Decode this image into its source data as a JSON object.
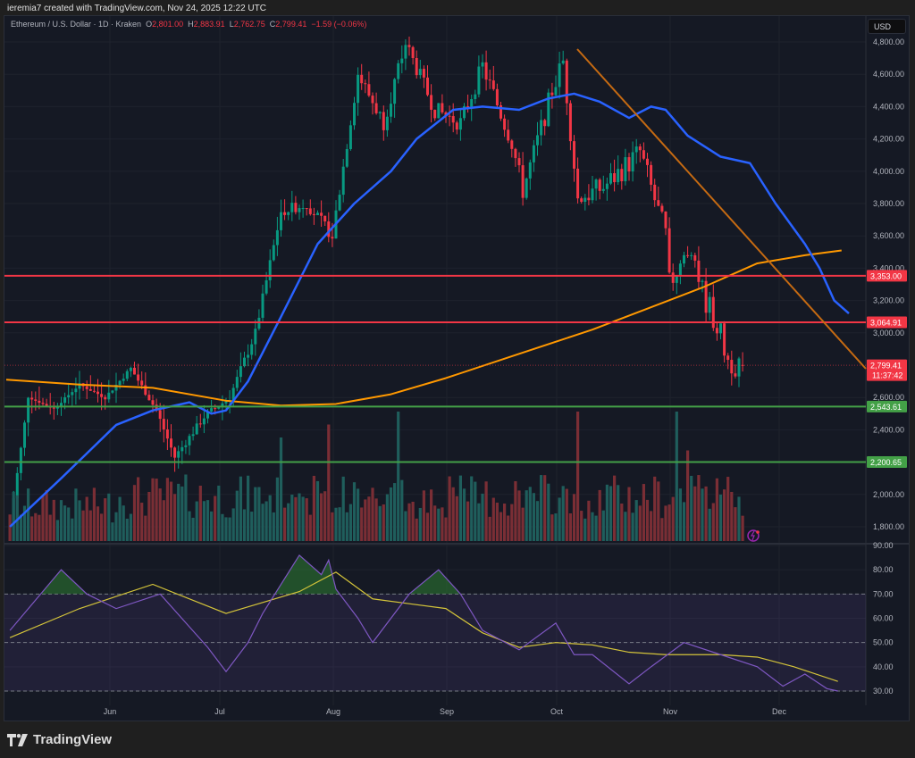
{
  "credit": "ieremia7 created with TradingView.com, Nov 24, 2025 12:22 UTC",
  "legend": {
    "symbol": "Ethereum / U.S. Dollar · 1D · Kraken",
    "open_label": "O",
    "open": "2,801.00",
    "high_label": "H",
    "high": "2,883.91",
    "low_label": "L",
    "low": "2,762.75",
    "close_label": "C",
    "close": "2,799.41",
    "change": "−1.59 (−0.06%)"
  },
  "currency_button": "USD",
  "brand": "TradingView",
  "colors": {
    "background": "#151924",
    "up": "#089981",
    "down": "#f23645",
    "vol_up": "#1f5e5c",
    "vol_down": "#7a2e35",
    "ema_fast": "#2962ff",
    "ma_slow": "#ff9800",
    "trendline": "#c56a12",
    "resistance": "#f23645",
    "support": "#43a047",
    "rsi": "#7e57c2",
    "rsi_ma": "#d4c43a"
  },
  "price_axis": {
    "labels": [
      "4,800.00",
      "4,600.00",
      "4,400.00",
      "4,200.00",
      "4,000.00",
      "3,800.00",
      "3,600.00",
      "3,400.00",
      "3,200.00",
      "3,000.00",
      "2,600.00",
      "2,400.00",
      "2,000.00",
      "1,800.00"
    ],
    "tags": [
      {
        "value": "3,353.00",
        "type": "resistance"
      },
      {
        "value": "3,064.91",
        "type": "resistance"
      },
      {
        "value": "2,799.41",
        "sub": "11:37:42",
        "type": "last"
      },
      {
        "value": "2,543.61",
        "type": "support"
      },
      {
        "value": "2,200.65",
        "type": "support"
      }
    ]
  },
  "rsi_axis": {
    "labels": [
      "90.00",
      "80.00",
      "70.00",
      "60.00",
      "50.00",
      "40.00",
      "30.00"
    ]
  },
  "time_axis": {
    "labels": [
      "Jun",
      "Jul",
      "Aug",
      "Sep",
      "Oct",
      "Nov",
      "Dec"
    ]
  },
  "chart_data": {
    "type": "candlestick",
    "title": "Ethereum / U.S. Dollar · 1D · Kraken",
    "ylabel": "USD",
    "ylim": [
      1700,
      4900
    ],
    "x_range": [
      "2025-05-07",
      "2025-12-20"
    ],
    "last_price": 2799.41,
    "ohlc_latest": {
      "open": 2801.0,
      "high": 2883.91,
      "low": 2762.75,
      "close": 2799.41,
      "change": -1.59,
      "change_pct": -0.06
    },
    "horizontal_levels": [
      {
        "price": 3353.0,
        "color": "red",
        "role": "resistance"
      },
      {
        "price": 3064.91,
        "color": "red",
        "role": "resistance"
      },
      {
        "price": 2543.61,
        "color": "green",
        "role": "support"
      },
      {
        "price": 2200.65,
        "color": "green",
        "role": "support"
      }
    ],
    "trendline": {
      "from": {
        "date": "2025-10-06",
        "price": 4755
      },
      "to": {
        "date": "2025-11-26",
        "price": 2800
      },
      "color": "orange",
      "extends_right": true
    },
    "closes_weekly_approx": [
      {
        "date": "2025-05-08",
        "close": 1820
      },
      {
        "date": "2025-05-13",
        "close": 2600
      },
      {
        "date": "2025-05-20",
        "close": 2530
      },
      {
        "date": "2025-05-27",
        "close": 2680
      },
      {
        "date": "2025-06-03",
        "close": 2600
      },
      {
        "date": "2025-06-10",
        "close": 2780
      },
      {
        "date": "2025-06-17",
        "close": 2520
      },
      {
        "date": "2025-06-22",
        "close": 2230
      },
      {
        "date": "2025-06-30",
        "close": 2480
      },
      {
        "date": "2025-07-07",
        "close": 2600
      },
      {
        "date": "2025-07-14",
        "close": 3000
      },
      {
        "date": "2025-07-21",
        "close": 3750
      },
      {
        "date": "2025-07-28",
        "close": 3800
      },
      {
        "date": "2025-08-04",
        "close": 3600
      },
      {
        "date": "2025-08-11",
        "close": 4600
      },
      {
        "date": "2025-08-18",
        "close": 4300
      },
      {
        "date": "2025-08-24",
        "close": 4790
      },
      {
        "date": "2025-09-01",
        "close": 4380
      },
      {
        "date": "2025-09-08",
        "close": 4300
      },
      {
        "date": "2025-09-14",
        "close": 4650
      },
      {
        "date": "2025-09-22",
        "close": 4180
      },
      {
        "date": "2025-09-25",
        "close": 3880
      },
      {
        "date": "2025-10-03",
        "close": 4500
      },
      {
        "date": "2025-10-06",
        "close": 4680
      },
      {
        "date": "2025-10-10",
        "close": 3830
      },
      {
        "date": "2025-10-17",
        "close": 3900
      },
      {
        "date": "2025-10-27",
        "close": 4120
      },
      {
        "date": "2025-11-03",
        "close": 3600
      },
      {
        "date": "2025-11-04",
        "close": 3300
      },
      {
        "date": "2025-11-10",
        "close": 3560
      },
      {
        "date": "2025-11-13",
        "close": 3250
      },
      {
        "date": "2025-11-17",
        "close": 3050
      },
      {
        "date": "2025-11-20",
        "close": 2830
      },
      {
        "date": "2025-11-24",
        "close": 2799.41
      }
    ],
    "series": [
      {
        "name": "EMA (fast, blue)",
        "points": [
          [
            1,
            1800
          ],
          [
            15,
            2100
          ],
          [
            30,
            2430
          ],
          [
            40,
            2520
          ],
          [
            50,
            2570
          ],
          [
            56,
            2500
          ],
          [
            60,
            2520
          ],
          [
            66,
            2700
          ],
          [
            75,
            3100
          ],
          [
            85,
            3550
          ],
          [
            95,
            3800
          ],
          [
            105,
            4000
          ],
          [
            112,
            4200
          ],
          [
            122,
            4380
          ],
          [
            130,
            4400
          ],
          [
            140,
            4380
          ],
          [
            148,
            4450
          ],
          [
            155,
            4480
          ],
          [
            162,
            4430
          ],
          [
            170,
            4330
          ],
          [
            176,
            4400
          ],
          [
            180,
            4380
          ],
          [
            186,
            4220
          ],
          [
            195,
            4090
          ],
          [
            203,
            4050
          ],
          [
            210,
            3800
          ],
          [
            218,
            3550
          ],
          [
            222,
            3400
          ],
          [
            226,
            3200
          ],
          [
            230,
            3120
          ]
        ]
      },
      {
        "name": "MA (slow, orange)",
        "points": [
          [
            0,
            2710
          ],
          [
            20,
            2680
          ],
          [
            40,
            2660
          ],
          [
            60,
            2580
          ],
          [
            75,
            2550
          ],
          [
            90,
            2560
          ],
          [
            105,
            2620
          ],
          [
            120,
            2720
          ],
          [
            140,
            2870
          ],
          [
            160,
            3020
          ],
          [
            175,
            3150
          ],
          [
            190,
            3280
          ],
          [
            205,
            3430
          ],
          [
            218,
            3480
          ],
          [
            228,
            3510
          ]
        ]
      }
    ],
    "volume_note": "Volume histogram at bottom of price pane; notable spikes around Aug 22 (green), Oct 10 (red), Nov 6 (green)",
    "rsi": {
      "ylim": [
        25,
        92
      ],
      "bands": [
        30,
        50,
        70
      ],
      "values_approx": [
        [
          1,
          55
        ],
        [
          15,
          80
        ],
        [
          22,
          70
        ],
        [
          30,
          64
        ],
        [
          42,
          70
        ],
        [
          55,
          48
        ],
        [
          60,
          38
        ],
        [
          66,
          50
        ],
        [
          70,
          62
        ],
        [
          80,
          86
        ],
        [
          86,
          78
        ],
        [
          88,
          84
        ],
        [
          90,
          72
        ],
        [
          96,
          60
        ],
        [
          100,
          50
        ],
        [
          110,
          70
        ],
        [
          118,
          80
        ],
        [
          124,
          70
        ],
        [
          130,
          55
        ],
        [
          140,
          47
        ],
        [
          150,
          58
        ],
        [
          155,
          45
        ],
        [
          160,
          45
        ],
        [
          170,
          33
        ],
        [
          176,
          40
        ],
        [
          185,
          50
        ],
        [
          195,
          45
        ],
        [
          205,
          40
        ],
        [
          212,
          32
        ],
        [
          218,
          37
        ],
        [
          224,
          31
        ],
        [
          227,
          30
        ]
      ],
      "ma_values_approx": [
        [
          1,
          52
        ],
        [
          20,
          64
        ],
        [
          40,
          74
        ],
        [
          60,
          62
        ],
        [
          80,
          71
        ],
        [
          90,
          79
        ],
        [
          100,
          68
        ],
        [
          110,
          66
        ],
        [
          120,
          64
        ],
        [
          130,
          54
        ],
        [
          140,
          48
        ],
        [
          150,
          50
        ],
        [
          160,
          49
        ],
        [
          170,
          46
        ],
        [
          180,
          45
        ],
        [
          195,
          45
        ],
        [
          205,
          44
        ],
        [
          215,
          40
        ],
        [
          227,
          34
        ]
      ]
    }
  }
}
